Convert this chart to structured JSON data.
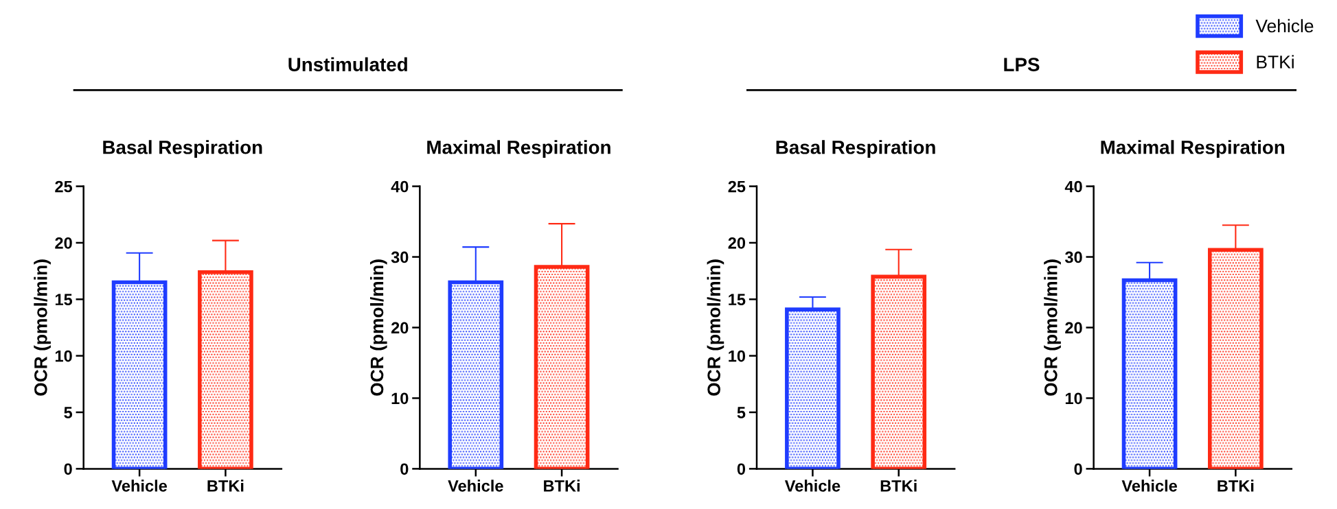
{
  "chart_data": [
    {
      "type": "bar",
      "title": "Basal Respiration",
      "ylabel": "OCR (pmol/min)",
      "annotations": [
        "Unstimulated"
      ],
      "categories": [
        "Vehicle",
        "BTKi"
      ],
      "ylim": [
        0,
        25
      ],
      "yticks": [
        0,
        5,
        10,
        15,
        20,
        25
      ],
      "values": [
        16.5,
        17.4
      ],
      "colors": [
        "#1f3cff",
        "#ff2a14"
      ],
      "errors": [
        [
          16.5,
          19.1
        ],
        [
          17.4,
          20.2
        ]
      ]
    },
    {
      "type": "bar",
      "title": "Maximal Respiration",
      "ylabel": "OCR (pmol/min)",
      "categories": [
        "Vehicle",
        "BTKi"
      ],
      "ylim": [
        0,
        40
      ],
      "yticks": [
        0,
        10,
        20,
        30,
        40
      ],
      "values": [
        26.4,
        28.6
      ],
      "colors": [
        "#1f3cff",
        "#ff2a14"
      ],
      "errors": [
        [
          26.4,
          31.4
        ],
        [
          28.6,
          34.7
        ]
      ]
    },
    {
      "type": "bar",
      "title": "Basal Respiration",
      "ylabel": "OCR (pmol/min)",
      "annotations": [
        "LPS"
      ],
      "categories": [
        "Vehicle",
        "BTKi"
      ],
      "ylim": [
        0,
        25
      ],
      "yticks": [
        0,
        5,
        10,
        15,
        20,
        25
      ],
      "values": [
        14.1,
        17.0
      ],
      "colors": [
        "#1f3cff",
        "#ff2a14"
      ],
      "errors": [
        [
          14.1,
          15.2
        ],
        [
          17.0,
          19.4
        ]
      ]
    },
    {
      "type": "bar",
      "title": "Maximal Respiration",
      "ylabel": "OCR (pmol/min)",
      "categories": [
        "Vehicle",
        "BTKi"
      ],
      "ylim": [
        0,
        40
      ],
      "yticks": [
        0,
        10,
        20,
        30,
        40
      ],
      "legend": "top right",
      "series": [
        {
          "name": "Vehicle",
          "color": "#1f3cff",
          "values": [
            26.7,
            null
          ],
          "errors": [
            [
              26.7,
              29.2
            ],
            null
          ]
        },
        {
          "name": "BTKi",
          "color": "#ff2a14",
          "values": [
            null,
            31.0
          ],
          "errors": [
            null,
            [
              31.0,
              34.5
            ]
          ]
        }
      ]
    }
  ]
}
